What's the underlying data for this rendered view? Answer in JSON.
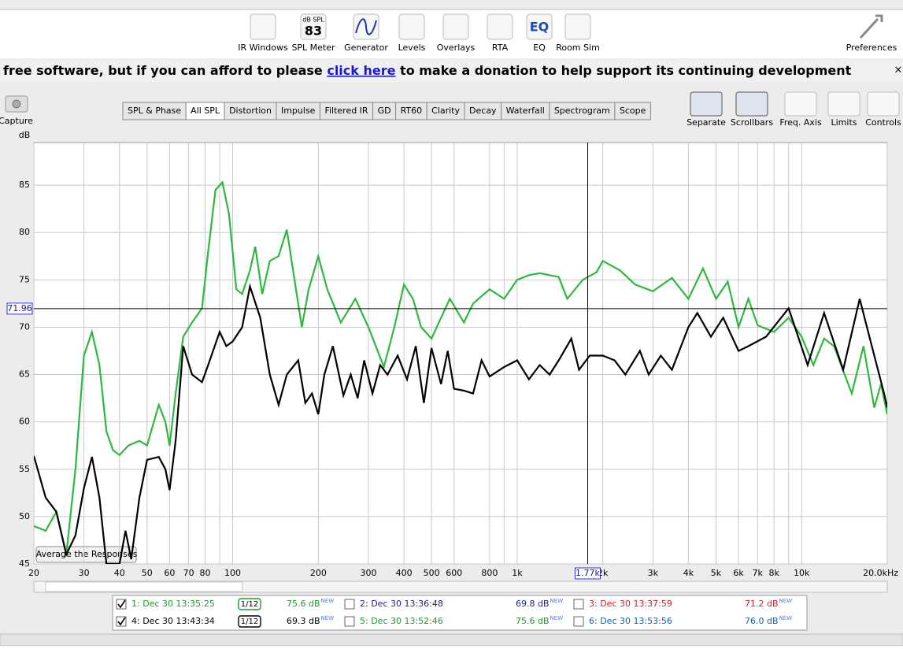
{
  "toolbar": {
    "items": [
      "IR Windows",
      "SPL Meter",
      "Generator",
      "Levels",
      "Overlays",
      "RTA",
      "EQ",
      "Room Sim"
    ],
    "spl_meter": {
      "unit": "dB SPL",
      "reading": "83"
    },
    "eq_icon": "EQ",
    "preferences": "Preferences"
  },
  "banner": {
    "before": "free software, but if you can afford to please ",
    "link": "click here",
    "after": " to make a donation to help support its continuing development",
    "close": "×"
  },
  "capture": "Capture",
  "tabs": {
    "items": [
      "SPL & Phase",
      "All SPL",
      "Distortion",
      "Impulse",
      "Filtered IR",
      "GD",
      "RT60",
      "Clarity",
      "Decay",
      "Waterfall",
      "Spectrogram",
      "Scope"
    ],
    "active": 1
  },
  "view_controls": [
    "Separate",
    "Scrollbars",
    "Freq. Axis",
    "Limits",
    "Controls"
  ],
  "average_button": "Average the Responses",
  "chart_data": {
    "type": "line",
    "y_label": "dB",
    "xscale": "log",
    "grid": true,
    "xlim": [
      20,
      20000
    ],
    "ylim": [
      45,
      89.5
    ],
    "xticks": [
      20,
      30,
      40,
      50,
      60,
      70,
      80,
      100,
      200,
      300,
      400,
      500,
      600,
      800,
      {
        "value": 1000,
        "label": "1k"
      },
      {
        "value": 2000,
        "label": "2k"
      },
      {
        "value": 3000,
        "label": "3k"
      },
      {
        "value": 4000,
        "label": "4k"
      },
      {
        "value": 5000,
        "label": "5k"
      },
      {
        "value": 6000,
        "label": "6k"
      },
      {
        "value": 7000,
        "label": "7k"
      },
      {
        "value": 8000,
        "label": "8k"
      },
      {
        "value": 10000,
        "label": "10k"
      },
      {
        "value": 20000,
        "label": "20.0kHz"
      }
    ],
    "xgrid_minor": [
      90,
      900,
      9000
    ],
    "yticks": [
      45,
      50,
      55,
      60,
      65,
      70,
      75,
      80,
      85
    ],
    "cursor": {
      "x": {
        "value": 1770,
        "label": "1.77k"
      },
      "y": {
        "value": 71.96,
        "label": "71.96"
      }
    },
    "series": [
      {
        "name": "1: Dec 30 13:35:25",
        "color": "#2eb83e",
        "x": [
          20,
          22,
          24,
          26,
          28,
          30,
          32,
          34,
          36,
          38,
          40,
          43,
          47,
          50,
          55,
          58,
          60,
          63,
          67,
          72,
          78,
          82,
          87,
          92,
          97,
          103,
          108,
          115,
          120,
          127,
          135,
          145,
          155,
          165,
          175,
          185,
          200,
          215,
          240,
          270,
          300,
          340,
          370,
          400,
          430,
          460,
          500,
          540,
          580,
          650,
          700,
          800,
          900,
          1000,
          1100,
          1200,
          1400,
          1500,
          1700,
          1900,
          2000,
          2300,
          2600,
          3000,
          3500,
          4000,
          4500,
          5000,
          5500,
          6000,
          6500,
          7000,
          8000,
          9000,
          10000,
          11000,
          12000,
          13000,
          15000,
          16500,
          18000,
          19000,
          20000
        ],
        "values": [
          49,
          48.5,
          50.5,
          46,
          55,
          67,
          69.5,
          66,
          59,
          57,
          56.5,
          57.5,
          58,
          57.5,
          61.8,
          60,
          57.5,
          63,
          69,
          70.5,
          72,
          78,
          84.5,
          85.3,
          82,
          74,
          73.5,
          76,
          78.5,
          73.5,
          77,
          77.5,
          80.3,
          75,
          70,
          74,
          77.5,
          74,
          70.5,
          73,
          70,
          65.8,
          70,
          74.5,
          73,
          70,
          68.8,
          71,
          73,
          70.5,
          72.5,
          74,
          73,
          75,
          75.5,
          75.7,
          75.3,
          73,
          75,
          75.8,
          77,
          76,
          74.5,
          73.8,
          75.2,
          73,
          76.2,
          73,
          74.8,
          70,
          73,
          70.2,
          69.5,
          71,
          69,
          66,
          68.8,
          68,
          63,
          68,
          61.5,
          64,
          60.8
        ]
      },
      {
        "name": "4: Dec 30 13:43:34",
        "color": "#000000",
        "x": [
          20,
          22,
          24,
          26,
          28,
          30,
          32,
          34,
          36,
          40,
          42,
          44,
          47,
          50,
          55,
          58,
          60,
          63,
          67,
          72,
          78,
          82,
          90,
          95,
          100,
          108,
          115,
          125,
          135,
          145,
          155,
          170,
          180,
          190,
          200,
          210,
          225,
          245,
          260,
          275,
          290,
          310,
          330,
          350,
          380,
          410,
          440,
          470,
          500,
          540,
          570,
          600,
          650,
          700,
          750,
          800,
          900,
          1000,
          1100,
          1200,
          1300,
          1400,
          1550,
          1650,
          1800,
          2000,
          2200,
          2400,
          2700,
          2900,
          3200,
          3500,
          4000,
          4300,
          4800,
          5300,
          6000,
          6500,
          7500,
          9000,
          10500,
          12000,
          14000,
          16000,
          18000,
          19500,
          20000
        ],
        "values": [
          56.4,
          52,
          50.5,
          46,
          48,
          53,
          56.3,
          52,
          45,
          45,
          48.5,
          45.5,
          52,
          56,
          56.3,
          55,
          52.8,
          58,
          68,
          65,
          64.2,
          66,
          69.5,
          68,
          68.5,
          70,
          74.3,
          71,
          65,
          61.8,
          65,
          66.5,
          62,
          63,
          60.8,
          65,
          68,
          62.8,
          65,
          62.5,
          66.5,
          63,
          66,
          65,
          67,
          64.5,
          68,
          62,
          67.8,
          64,
          67.5,
          63.5,
          63.3,
          63,
          66.5,
          64.8,
          65.8,
          66.5,
          64.5,
          66,
          65,
          66.5,
          68.8,
          65.5,
          67,
          67,
          66.5,
          65,
          67.5,
          65,
          67,
          65.5,
          70,
          71.5,
          69,
          71,
          67.5,
          68,
          69,
          72,
          66,
          71.5,
          65.5,
          73,
          67,
          63,
          61.5
        ]
      }
    ]
  },
  "legend": [
    {
      "label": "1: Dec 30 13:35:25",
      "color": "#1f9a2a",
      "checked": true,
      "smoothing": "1/12",
      "value": "75.6 dB",
      "badge": "NEW"
    },
    {
      "label": "2: Dec 30 13:36:48",
      "color": "#1c1c8c",
      "checked": false,
      "value": "69.8 dB",
      "badge": "NEW"
    },
    {
      "label": "3: Dec 30 13:37:59",
      "color": "#d02020",
      "checked": false,
      "value": "71.2 dB",
      "badge": "NEW"
    },
    {
      "label": "4: Dec 30 13:43:34",
      "color": "#000000",
      "checked": true,
      "smoothing": "1/12",
      "value": "69.3 dB",
      "badge": "NEW"
    },
    {
      "label": "5: Dec 30 13:52:46",
      "color": "#1f9a2a",
      "checked": false,
      "value": "75.6 dB",
      "badge": "NEW"
    },
    {
      "label": "6: Dec 30 13:53:56",
      "color": "#1560b0",
      "checked": false,
      "value": "76.0 dB",
      "badge": "NEW"
    }
  ]
}
